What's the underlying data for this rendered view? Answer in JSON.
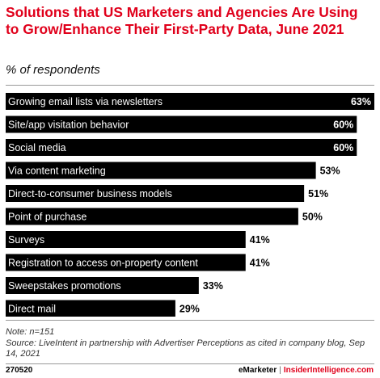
{
  "header": {
    "title": "Solutions that US Marketers and Agencies Are Using to Grow/Enhance Their First-Party Data, June 2021",
    "subtitle": "% of respondents"
  },
  "chart_data": {
    "type": "bar",
    "orientation": "horizontal",
    "categories": [
      "Growing email lists via newsletters",
      "Site/app visitation behavior",
      "Social media",
      "Via content marketing",
      "Direct-to-consumer business models",
      "Point of purchase",
      "Surveys",
      "Registration to access on-property content",
      "Sweepstakes promotions",
      "Direct mail"
    ],
    "values": [
      63,
      60,
      60,
      53,
      51,
      50,
      41,
      41,
      33,
      29
    ],
    "value_labels": [
      "63%",
      "60%",
      "60%",
      "53%",
      "51%",
      "50%",
      "41%",
      "41%",
      "33%",
      "29%"
    ],
    "bar_color": "#000000",
    "label_color": "#ffffff"
  },
  "footer": {
    "note": "Note: n=151",
    "source": "Source: LiveIntent in partnership with Advertiser Perceptions as cited in company blog, Sep 14, 2021",
    "chart_id": "270520",
    "brand_emarketer": "eMarketer",
    "separator": "|",
    "brand_insider": "InsiderIntelligence.com"
  }
}
